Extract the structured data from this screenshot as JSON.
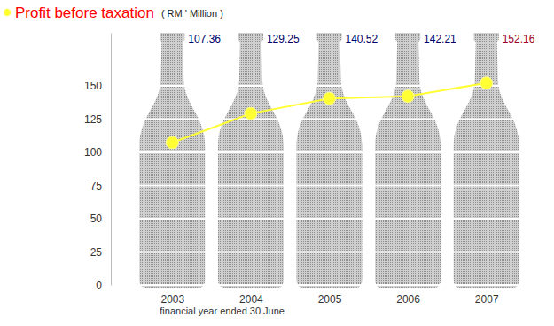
{
  "chart_data": {
    "type": "line",
    "title": "Profit before taxation",
    "subtitle": "( RM ' Million )",
    "x_label": "financial year ended 30 June",
    "categories": [
      "2003",
      "2004",
      "2005",
      "2006",
      "2007"
    ],
    "values": [
      107.36,
      129.25,
      140.52,
      142.21,
      152.16
    ],
    "color": "#ffff33",
    "marker": "circle",
    "line_style": "solid",
    "ylim": [
      0,
      190
    ],
    "yticks": [
      0,
      25,
      50,
      75,
      100,
      125,
      150
    ],
    "grid": true,
    "data_labels": true
  }
}
